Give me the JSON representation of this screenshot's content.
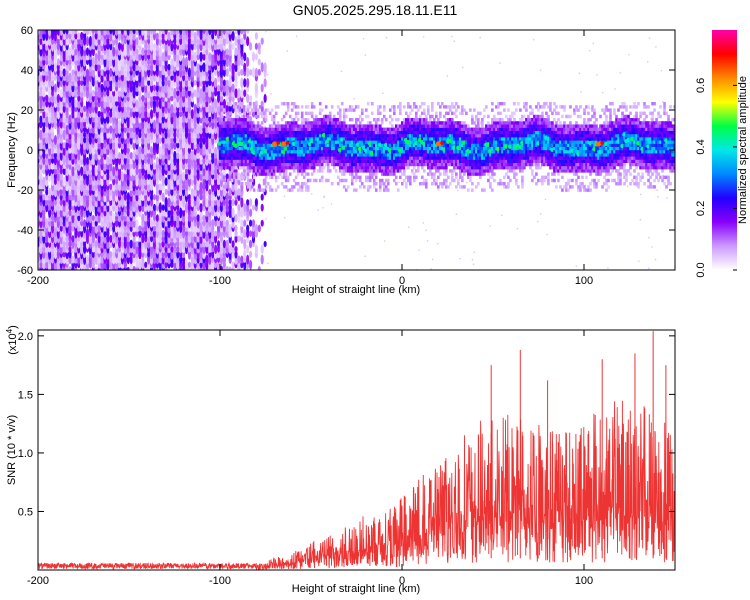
{
  "title": "GN05.2025.295.18.11.E11",
  "chart_data": [
    {
      "type": "heatmap",
      "name": "spectrogram",
      "xlabel": "Height of straight line (km)",
      "ylabel": "Frequency (Hz)",
      "xlim": [
        -200,
        150
      ],
      "ylim": [
        -60,
        60
      ],
      "xticks": [
        -200,
        -100,
        0,
        100
      ],
      "xtick_labels": [
        "-200",
        "-100",
        "0",
        "100"
      ],
      "yticks": [
        -60,
        -40,
        -20,
        0,
        20,
        40,
        60
      ],
      "ytick_labels": [
        "-60",
        "-40",
        "-20",
        "0",
        "20",
        "40",
        "60"
      ],
      "noise_region_end_km": -75,
      "signal_region_start_km": -100,
      "signal_band_center_hz": 2,
      "signal_band_halfwidth_hz": 12,
      "hot_spots_km": [
        -70,
        -65,
        20,
        108
      ],
      "colorbar": {
        "label": "Normalized spectral amplitude",
        "range": [
          0.0,
          0.78
        ],
        "ticks": [
          0.0,
          0.2,
          0.4,
          0.6
        ],
        "tick_labels": [
          "0.0",
          "0.2",
          "0.4",
          "0.6"
        ],
        "colors": [
          "#ffffff",
          "#cc99ff",
          "#8800ff",
          "#2200ff",
          "#0088ff",
          "#00e8e8",
          "#00ff44",
          "#ffff00",
          "#ff8800",
          "#ff0000",
          "#ff00aa"
        ]
      }
    },
    {
      "type": "line",
      "name": "snr",
      "xlabel": "Height of straight line (km)",
      "ylabel": "SNR (10 * v/v)",
      "scale_note": "(x10",
      "scale_exp": "4",
      "scale_close": ")",
      "xlim": [
        -200,
        150
      ],
      "ylim": [
        0,
        2.05
      ],
      "xticks": [
        -200,
        -100,
        0,
        100
      ],
      "xtick_labels": [
        "-200",
        "-100",
        "0",
        "100"
      ],
      "yticks": [
        0.5,
        1.0,
        1.5,
        2.0
      ],
      "ytick_labels": [
        "0.5",
        "1.0",
        "1.5",
        "2.0"
      ],
      "color": "#ee3333",
      "envelope": [
        {
          "x": -200,
          "y": 0.05
        },
        {
          "x": -80,
          "y": 0.05
        },
        {
          "x": -60,
          "y": 0.15
        },
        {
          "x": -40,
          "y": 0.3
        },
        {
          "x": -20,
          "y": 0.45
        },
        {
          "x": 0,
          "y": 0.6
        },
        {
          "x": 20,
          "y": 0.9
        },
        {
          "x": 40,
          "y": 1.2
        },
        {
          "x": 60,
          "y": 1.3
        },
        {
          "x": 80,
          "y": 1.2
        },
        {
          "x": 100,
          "y": 1.25
        },
        {
          "x": 120,
          "y": 1.4
        },
        {
          "x": 150,
          "y": 1.3
        }
      ],
      "peaks": [
        {
          "x": 49,
          "y": 1.75
        },
        {
          "x": 65,
          "y": 1.88
        },
        {
          "x": 80,
          "y": 1.62
        },
        {
          "x": 110,
          "y": 1.8
        },
        {
          "x": 128,
          "y": 1.85
        },
        {
          "x": 138,
          "y": 2.04
        },
        {
          "x": 145,
          "y": 1.75
        }
      ]
    }
  ]
}
